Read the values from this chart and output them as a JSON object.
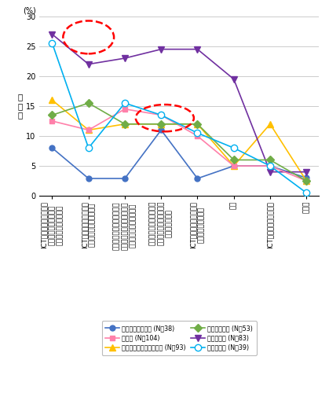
{
  "ylabel": "回\n答\n率",
  "yunits": "(%)",
  "ylim": [
    0,
    30
  ],
  "yticks": [
    0,
    5,
    10,
    15,
    20,
    25,
    30
  ],
  "xlabels": [
    "ICTを利用した現地向け\nサービス・商品の開発\n（データの利活用等）",
    "ICTに直接的に係るサー\nビス・商品の販売や提供",
    "現地とのコミュニケーショ\nンにおける通信ネットワー\nクの業務システムの活用",
    "流通・販売網等における\n通信ネットワークや業務\nシステムの活用",
    "ICTを利用したサービス\n・商品の販売や提供",
    "協業",
    "ICT関連企業との連携・",
    "その他"
  ],
  "series": [
    {
      "name": "農林水産業・鉱業 (N＝38)",
      "color": "#4472C4",
      "marker": "o",
      "markersize": 5,
      "markerfacecolor": "#4472C4",
      "values": [
        8.0,
        2.9,
        2.9,
        11.0,
        2.9,
        5.0,
        5.0,
        3.0
      ]
    },
    {
      "name": "エネルギー・インフラ業 (N＝93)",
      "color": "#FFC000",
      "marker": "^",
      "markersize": 6,
      "markerfacecolor": "#FFC000",
      "values": [
        16.0,
        11.0,
        12.0,
        12.0,
        12.0,
        5.0,
        12.0,
        2.5
      ]
    },
    {
      "name": "情報通信業 (N＝83)",
      "color": "#7030A0",
      "marker": "v",
      "markersize": 6,
      "markerfacecolor": "#7030A0",
      "values": [
        27.0,
        22.0,
        23.0,
        24.5,
        24.5,
        19.5,
        4.0,
        4.0
      ]
    },
    {
      "name": "製造業 (N＝104)",
      "color": "#FF80AA",
      "marker": "s",
      "markersize": 5,
      "markerfacecolor": "#FF80AA",
      "values": [
        12.5,
        11.0,
        14.5,
        13.5,
        10.0,
        5.0,
        5.0,
        2.5
      ]
    },
    {
      "name": "商業・流通業 (N＝53)",
      "color": "#70AD47",
      "marker": "D",
      "markersize": 5,
      "markerfacecolor": "#70AD47",
      "values": [
        13.5,
        15.5,
        12.0,
        12.0,
        12.0,
        6.0,
        6.0,
        2.5
      ]
    },
    {
      "name": "サービス業 (N＝39)",
      "color": "#00B0F0",
      "marker": "o",
      "markersize": 6,
      "markerfacecolor": "white",
      "values": [
        25.5,
        8.0,
        15.5,
        13.5,
        10.5,
        8.0,
        5.0,
        0.5
      ]
    }
  ],
  "bg_color": "#FFFFFF",
  "grid_color": "#CCCCCC"
}
